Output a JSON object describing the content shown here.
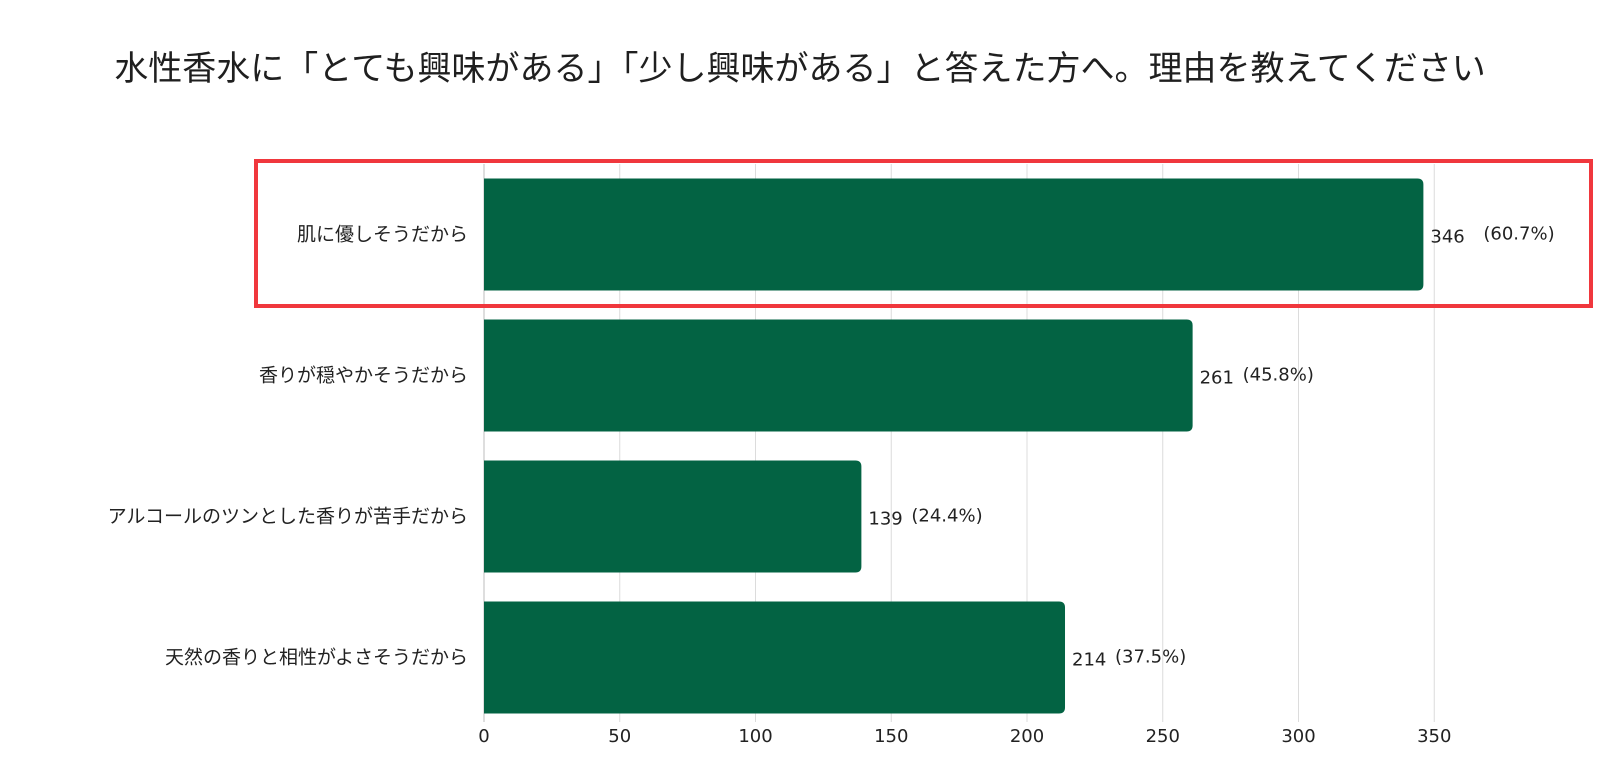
{
  "chart_data": {
    "type": "bar",
    "orientation": "horizontal",
    "title": "水性香水に「とても興味がある」「少し興味がある」と答えた方へ。理由を教えてください",
    "categories": [
      "肌に優しそうだから",
      "香りが穏やかそうだから",
      "アルコールのツンとした香りが苦手だから",
      "天然の香りと相性がよさそうだから"
    ],
    "values": [
      346,
      261,
      139,
      214
    ],
    "percent_labels": [
      "(60.7%)",
      "(45.8%)",
      "(24.4%)",
      "(37.5%)"
    ],
    "xlim": [
      0,
      400
    ],
    "xticks": [
      0,
      50,
      100,
      150,
      200,
      250,
      300,
      350
    ],
    "grid": true,
    "highlighted_category": "肌に優しそうだから",
    "colors": {
      "bar": "#036343",
      "highlight_box": "#f0373d",
      "grid": "#dcdcdc"
    }
  }
}
